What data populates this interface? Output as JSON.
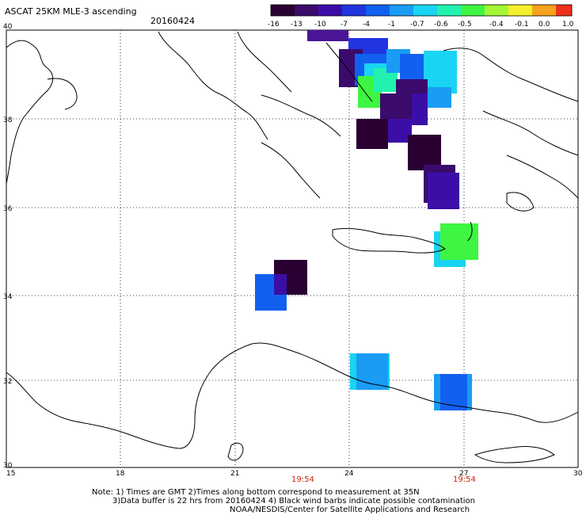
{
  "header": {
    "title": "ASCAT 25KM MLE-3 ascending",
    "date": "20160424"
  },
  "colorbar": {
    "labels": [
      "-16",
      "-13",
      "-10",
      "-7",
      "-4",
      "-1",
      "-0.7",
      "-0.6",
      "-0.5",
      "-0.4",
      "-0.1",
      "0.0",
      "1.0"
    ],
    "colors": [
      "#2a0033",
      "#3a0b6b",
      "#3c0ea8",
      "#2035e0",
      "#1260f0",
      "#1a9cf5",
      "#19d4f2",
      "#22f2b0",
      "#3ef542",
      "#a4f534",
      "#f5ef2a",
      "#f5a21c",
      "#f0301a"
    ]
  },
  "axes": {
    "lon_labels": [
      "15",
      "18",
      "21",
      "24",
      "27",
      "30"
    ],
    "lat_labels": [
      "40",
      "38",
      "36",
      "34",
      "32",
      "30"
    ]
  },
  "pass_times": [
    "19:54",
    "19:54"
  ],
  "notes": [
    "Note: 1) Times are GMT 2)Times along bottom correspond to measurement at 35N",
    "3)Data buffer is 22 hrs from 20160424 4) Black wind barbs indicate possible contamination",
    "NOAA/NESDIS/Center for Satellite Applications and Research"
  ]
}
